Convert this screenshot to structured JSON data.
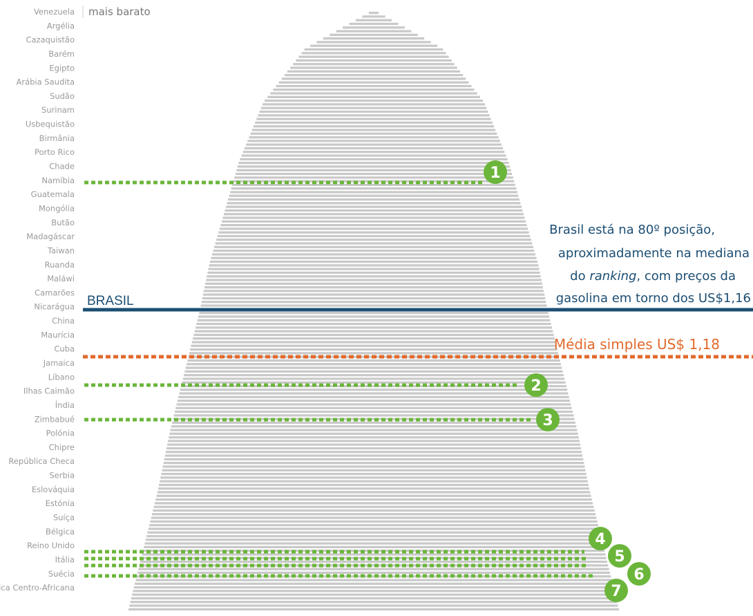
{
  "chart_data": {
    "type": "bar",
    "orientation": "horizontal",
    "note_top": "mais barato",
    "country_labels": [
      "Venezuela",
      "Argélia",
      "Cazaquistão",
      "Barém",
      "Egipto",
      "Arábia Saudita",
      "Sudão",
      "Surinam",
      "Usbequistão",
      "Birmânia",
      "Porto Rico",
      "Chade",
      "Namíbia",
      "Guatemala",
      "Mongólia",
      "Butão",
      "Madagáscar",
      "Taiwan",
      "Ruanda",
      "Maláwi",
      "Camarões",
      "Nicarágua",
      "China",
      "Maurícia",
      "Cuba",
      "Jamaica",
      "Líbano",
      "Ilhas Caimão",
      "Índia",
      "Zimbabué",
      "Polónia",
      "Chipre",
      "República Checa",
      "Serbia",
      "Eslováquia",
      "Estónia",
      "Suíça",
      "Bélgica",
      "Reino Unido",
      "Itália",
      "Suécia",
      "República Centro-Africana"
    ],
    "bar_count": 164,
    "value_shape": [
      [
        0,
        0.02
      ],
      [
        0.06,
        0.28
      ],
      [
        0.15,
        0.45
      ],
      [
        0.25,
        0.55
      ],
      [
        0.35,
        0.62
      ],
      [
        0.42,
        0.67
      ],
      [
        0.5,
        0.71
      ],
      [
        0.6,
        0.77
      ],
      [
        0.7,
        0.83
      ],
      [
        0.8,
        0.88
      ],
      [
        0.9,
        0.94
      ],
      [
        1.0,
        1.0
      ]
    ],
    "markers": [
      {
        "number": "1",
        "country": "Namíbia"
      },
      {
        "number": "2",
        "country": "Líbano"
      },
      {
        "number": "3",
        "country": "Índia"
      },
      {
        "number": "4",
        "country": "Bélgica"
      },
      {
        "number": "5",
        "country": "Reino Unido"
      },
      {
        "number": "6",
        "country": "Reino Unido"
      },
      {
        "number": "7",
        "country": "Itália"
      }
    ],
    "brasil": {
      "label": "BRASIL",
      "position": 80
    },
    "media": {
      "label": "Média simples US$ 1,18"
    },
    "annotation": {
      "line1": "Brasil está na 80º posição,",
      "line2": "aproximadamente na mediana",
      "line3_pre": "do ",
      "line3_em": "ranking",
      "line3_post": ", com preços da",
      "line4": "gasolina em torno dos US$1,16"
    }
  },
  "colors": {
    "bar": "#c9c9c9",
    "green": "#6bb63a",
    "orange": "#e26a2c",
    "navy": "#1c4e73",
    "label": "#9a9a9a"
  }
}
